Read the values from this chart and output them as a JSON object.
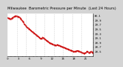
{
  "title": "Milwaukee  Barometric Pressure per Minute  (Last 24 Hours)",
  "line_color": "#cc0000",
  "bg_color": "#d4d4d4",
  "plot_bg_color": "#ffffff",
  "grid_color": "#aaaaaa",
  "y_values": [
    30.02,
    30.01,
    30.0,
    29.99,
    29.98,
    29.97,
    29.98,
    29.99,
    30.01,
    30.03,
    30.05,
    30.07,
    30.08,
    30.09,
    30.1,
    30.11,
    30.1,
    30.09,
    30.08,
    30.07,
    30.06,
    30.05,
    30.03,
    30.01,
    29.98,
    29.95,
    29.92,
    29.88,
    29.84,
    29.8,
    29.76,
    29.72,
    29.68,
    29.65,
    29.62,
    29.6,
    29.58,
    29.56,
    29.54,
    29.52,
    29.5,
    29.48,
    29.46,
    29.44,
    29.42,
    29.4,
    29.38,
    29.36,
    29.34,
    29.32,
    29.3,
    29.28,
    29.26,
    29.24,
    29.22,
    29.2,
    29.18,
    29.16,
    29.14,
    29.12,
    29.1,
    29.09,
    29.1,
    29.12,
    29.14,
    29.13,
    29.11,
    29.09,
    29.07,
    29.05,
    29.03,
    29.01,
    28.99,
    28.97,
    28.95,
    28.93,
    28.91,
    28.89,
    28.88,
    28.87,
    28.86,
    28.85,
    28.84,
    28.83,
    28.82,
    28.81,
    28.8,
    28.79,
    28.78,
    28.79,
    28.8,
    28.81,
    28.8,
    28.79,
    28.78,
    28.77,
    28.76,
    28.75,
    28.74,
    28.73,
    28.72,
    28.71,
    28.7,
    28.69,
    28.68,
    28.67,
    28.66,
    28.65,
    28.64,
    28.63,
    28.62,
    28.61,
    28.6,
    28.59,
    28.58,
    28.57,
    28.56,
    28.55,
    28.54,
    28.53,
    28.52,
    28.51,
    28.5,
    28.5,
    28.51,
    28.52,
    28.53,
    28.54,
    28.55,
    28.54,
    28.53,
    28.52,
    28.51,
    28.5,
    28.49,
    28.48,
    28.47,
    28.46,
    28.45,
    28.44,
    28.43,
    28.42,
    28.44,
    28.46,
    28.48,
    28.5,
    28.52,
    28.5,
    28.48,
    28.46,
    28.45,
    28.47,
    28.49,
    28.51,
    28.5,
    28.48,
    28.46,
    28.45
  ],
  "ylim": [
    28.3,
    30.2
  ],
  "yticks": [
    28.5,
    28.7,
    28.9,
    29.1,
    29.3,
    29.5,
    29.7,
    29.9,
    30.1
  ],
  "n_vgridlines": 9,
  "title_fontsize": 3.8,
  "tick_fontsize": 3.0,
  "linewidth": 0.7,
  "marker": ".",
  "markersize": 0.8,
  "linestyle": "--"
}
